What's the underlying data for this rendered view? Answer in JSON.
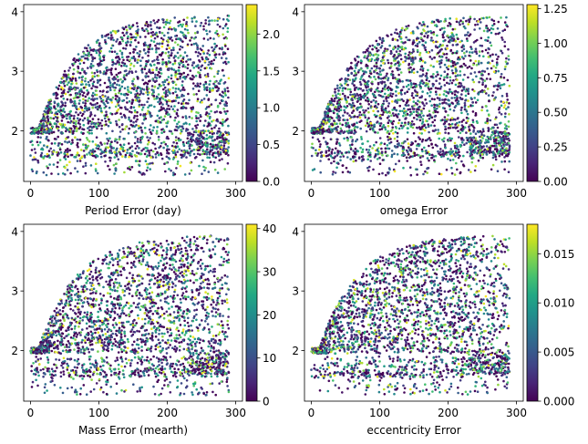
{
  "chart_data": [
    {
      "type": "scatter",
      "xlabel": "Period Error (day)",
      "xlim": [
        -10,
        310
      ],
      "ylim": [
        1.15,
        4.12
      ],
      "xticks": [
        "0",
        "100",
        "200",
        "300"
      ],
      "yticks": [
        "2",
        "3",
        "4"
      ],
      "colorbar": {
        "ticks": [
          "0.0",
          "0.5",
          "1.0",
          "1.5",
          "2.0"
        ],
        "min": 0.0,
        "max": 2.4,
        "colormap": "viridis"
      },
      "points_note_seed": 11
    },
    {
      "type": "scatter",
      "xlabel": "omega Error",
      "xlim": [
        -10,
        310
      ],
      "ylim": [
        1.15,
        4.12
      ],
      "xticks": [
        "0",
        "100",
        "200",
        "300"
      ],
      "yticks": [
        "2",
        "3",
        "4"
      ],
      "colorbar": {
        "ticks": [
          "0.00",
          "0.25",
          "0.50",
          "0.75",
          "1.00",
          "1.25"
        ],
        "min": 0.0,
        "max": 1.28,
        "colormap": "viridis"
      },
      "points_note_seed": 23
    },
    {
      "type": "scatter",
      "xlabel": "Mass Error (mearth)",
      "xlim": [
        -10,
        310
      ],
      "ylim": [
        1.15,
        4.12
      ],
      "xticks": [
        "0",
        "100",
        "200",
        "300"
      ],
      "yticks": [
        "2",
        "3",
        "4"
      ],
      "colorbar": {
        "ticks": [
          "0",
          "10",
          "20",
          "30",
          "40"
        ],
        "min": 0,
        "max": 41,
        "colormap": "viridis"
      },
      "points_note_seed": 37
    },
    {
      "type": "scatter",
      "xlabel": "eccentricity Error",
      "xlim": [
        -10,
        310
      ],
      "ylim": [
        1.15,
        4.12
      ],
      "xticks": [
        "0",
        "100",
        "200",
        "300"
      ],
      "yticks": [
        "2",
        "3",
        "4"
      ],
      "colorbar": {
        "ticks": [
          "0.000",
          "0.005",
          "0.010",
          "0.015"
        ],
        "min": 0.0,
        "max": 0.018,
        "colormap": "viridis"
      },
      "points_note_seed": 53
    }
  ]
}
